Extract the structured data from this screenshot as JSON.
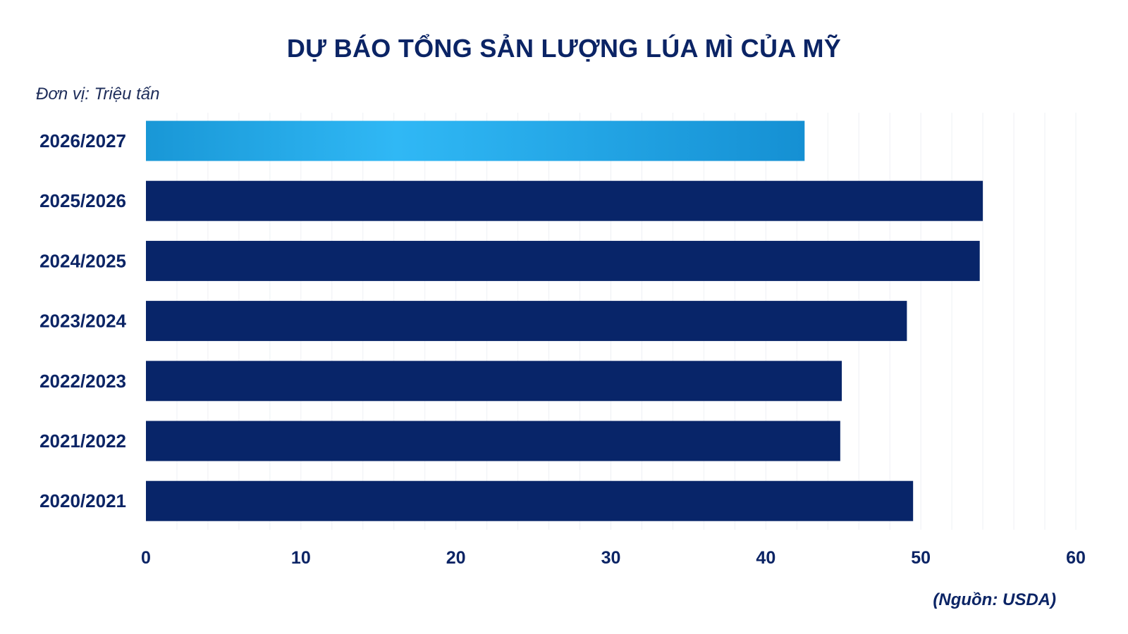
{
  "chart_data": {
    "type": "bar",
    "orientation": "horizontal",
    "title": "DỰ BÁO TỔNG SẢN LƯỢNG LÚA MÌ CỦA MỸ",
    "unit_label": "Đơn vị: Triệu tấn",
    "source": "(Nguồn: USDA)",
    "categories": [
      "2026/2027",
      "2025/2026",
      "2024/2025",
      "2023/2024",
      "2022/2023",
      "2021/2022",
      "2020/2021"
    ],
    "values": [
      42.5,
      54.0,
      53.8,
      49.1,
      44.9,
      44.8,
      49.5
    ],
    "highlight_category": "2026/2027",
    "xlim": [
      0,
      60
    ],
    "xticks": [
      "0",
      "10",
      "20",
      "30",
      "40",
      "50",
      "60"
    ],
    "grid": true,
    "colors": {
      "bar": "#082569",
      "highlight_gradient": [
        "#1997d6",
        "#30b8f5",
        "#1590d3"
      ],
      "text": "#0b2465"
    }
  }
}
